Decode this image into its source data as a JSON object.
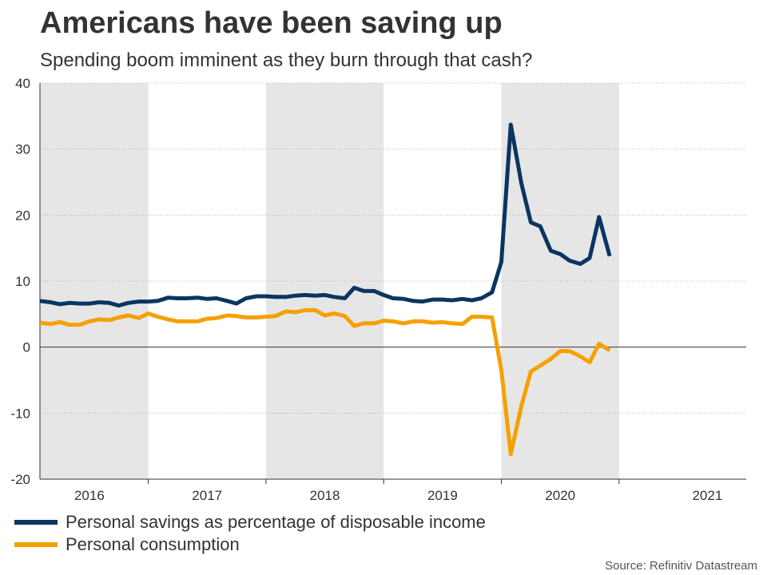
{
  "colors": {
    "savings": "#0b3561",
    "consumption": "#f6a000",
    "band": "#e6e6e6",
    "grid": "#b8b8b8",
    "axis": "#333333"
  },
  "chart_data": {
    "type": "line",
    "title": "Americans have been saving up",
    "subtitle": "Spending boom imminent as they burn through that cash?",
    "source": "Source: Refinitiv Datastream",
    "ylim": [
      -20,
      40
    ],
    "yticks": [
      40,
      30,
      20,
      10,
      0,
      -10,
      -20
    ],
    "xlim": [
      2015.58,
      2021.58
    ],
    "year_labels": [
      {
        "label": "2016",
        "x": 2016.0
      },
      {
        "label": "2017",
        "x": 2017.0
      },
      {
        "label": "2018",
        "x": 2018.0
      },
      {
        "label": "2019",
        "x": 2019.0
      },
      {
        "label": "2020",
        "x": 2020.0
      },
      {
        "label": "2021",
        "x": 2021.25
      }
    ],
    "year_boundaries": [
      2016.5,
      2017.5,
      2018.5,
      2019.5,
      2020.5
    ],
    "shaded_bands": [
      [
        2015.58,
        2016.5
      ],
      [
        2017.5,
        2018.5
      ],
      [
        2019.5,
        2020.5
      ]
    ],
    "series": [
      {
        "name": "Personal savings as percentage of disposable income",
        "color_key": "savings",
        "x": [
          2015.58,
          2015.67,
          2015.75,
          2015.83,
          2015.92,
          2016.0,
          2016.08,
          2016.17,
          2016.25,
          2016.33,
          2016.42,
          2016.5,
          2016.58,
          2016.67,
          2016.75,
          2016.83,
          2016.92,
          2017.0,
          2017.08,
          2017.17,
          2017.25,
          2017.33,
          2017.42,
          2017.5,
          2017.58,
          2017.67,
          2017.75,
          2017.83,
          2017.92,
          2018.0,
          2018.08,
          2018.17,
          2018.25,
          2018.33,
          2018.42,
          2018.5,
          2018.58,
          2018.67,
          2018.75,
          2018.83,
          2018.92,
          2019.0,
          2019.08,
          2019.17,
          2019.25,
          2019.33,
          2019.42,
          2019.5,
          2019.58,
          2019.67,
          2019.75,
          2019.83,
          2019.92,
          2020.0,
          2020.08,
          2020.17,
          2020.25,
          2020.33,
          2020.42,
          2020.5,
          2020.58,
          2020.67
        ],
        "values": [
          7.0,
          6.8,
          6.5,
          6.7,
          6.6,
          6.6,
          6.8,
          6.7,
          6.3,
          6.7,
          6.9,
          6.9,
          7.0,
          7.5,
          7.4,
          7.4,
          7.5,
          7.3,
          7.4,
          7.0,
          6.6,
          7.4,
          7.7,
          7.7,
          7.6,
          7.6,
          7.8,
          7.9,
          7.8,
          7.9,
          7.6,
          7.4,
          9.0,
          8.5,
          8.5,
          7.9,
          7.4,
          7.3,
          7.0,
          6.9,
          7.2,
          7.2,
          7.1,
          7.3,
          7.1,
          7.4,
          8.3,
          12.9,
          33.7,
          24.8,
          18.9,
          18.3,
          14.6,
          14.1,
          13.1,
          12.6,
          13.5,
          19.7,
          13.8,
          null,
          null,
          null
        ]
      },
      {
        "name": "Personal consumption",
        "color_key": "consumption",
        "x": [
          2015.58,
          2015.67,
          2015.75,
          2015.83,
          2015.92,
          2016.0,
          2016.08,
          2016.17,
          2016.25,
          2016.33,
          2016.42,
          2016.5,
          2016.58,
          2016.67,
          2016.75,
          2016.83,
          2016.92,
          2017.0,
          2017.08,
          2017.17,
          2017.25,
          2017.33,
          2017.42,
          2017.5,
          2017.58,
          2017.67,
          2017.75,
          2017.83,
          2017.92,
          2018.0,
          2018.08,
          2018.17,
          2018.25,
          2018.33,
          2018.42,
          2018.5,
          2018.58,
          2018.67,
          2018.75,
          2018.83,
          2018.92,
          2019.0,
          2019.08,
          2019.17,
          2019.25,
          2019.33,
          2019.42,
          2019.5,
          2019.58,
          2019.67,
          2019.75,
          2019.83,
          2019.92,
          2020.0,
          2020.08,
          2020.17,
          2020.25,
          2020.33,
          2020.42,
          2020.5,
          2020.58,
          2020.67
        ],
        "values": [
          3.7,
          3.5,
          3.8,
          3.4,
          3.4,
          3.9,
          4.2,
          4.1,
          4.5,
          4.8,
          4.4,
          5.1,
          4.6,
          4.2,
          3.9,
          3.9,
          3.9,
          4.3,
          4.4,
          4.8,
          4.7,
          4.5,
          4.5,
          4.6,
          4.7,
          5.4,
          5.3,
          5.6,
          5.6,
          4.8,
          5.1,
          4.7,
          3.2,
          3.6,
          3.6,
          4.0,
          3.9,
          3.6,
          3.9,
          3.9,
          3.7,
          3.8,
          3.6,
          3.5,
          4.6,
          4.6,
          4.5,
          -3.5,
          -16.2,
          -8.9,
          -3.7,
          -2.8,
          -1.8,
          -0.6,
          -0.6,
          -1.4,
          -2.3,
          0.5,
          -0.5,
          null,
          null,
          null
        ]
      }
    ]
  }
}
